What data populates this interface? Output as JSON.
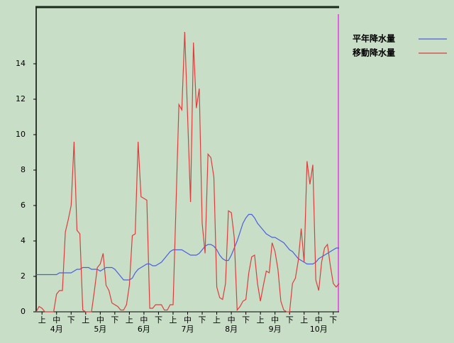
{
  "chart_data": {
    "type": "line",
    "categories": [
      null,
      null,
      "上",
      null,
      null,
      null,
      null,
      "中",
      null,
      null,
      null,
      null,
      "下",
      null,
      null,
      null,
      null,
      "上",
      null,
      null,
      null,
      null,
      "中",
      null,
      null,
      null,
      null,
      "下",
      null,
      null,
      null,
      null,
      "上",
      null,
      null,
      null,
      null,
      "中",
      null,
      null,
      null,
      null,
      "下",
      null,
      null,
      null,
      null,
      "上",
      null,
      null,
      null,
      null,
      "中",
      null,
      null,
      null,
      null,
      "下",
      null,
      null,
      null,
      null,
      "上",
      null,
      null,
      null,
      null,
      "中",
      null,
      null,
      null,
      null,
      "下",
      null,
      null,
      null,
      null,
      "上",
      null,
      null,
      null,
      null,
      "中",
      null,
      null,
      null,
      null,
      "下",
      null,
      null,
      null,
      null,
      "上",
      null,
      null,
      null,
      null,
      "中",
      null,
      null,
      null,
      null,
      "下",
      null,
      null
    ],
    "month_labels": [
      "4月",
      "5月",
      "6月",
      "7月",
      "8月",
      "9月",
      "10月"
    ],
    "series": [
      {
        "name": "平年降水量",
        "color": "#4a5ee0",
        "values": [
          2.1,
          2.1,
          2.1,
          2.1,
          2.1,
          2.1,
          2.1,
          2.1,
          2.2,
          2.2,
          2.2,
          2.2,
          2.2,
          2.3,
          2.4,
          2.4,
          2.5,
          2.5,
          2.5,
          2.4,
          2.4,
          2.4,
          2.3,
          2.4,
          2.5,
          2.5,
          2.5,
          2.4,
          2.2,
          2.0,
          1.8,
          1.8,
          1.8,
          1.9,
          2.2,
          2.4,
          2.5,
          2.6,
          2.7,
          2.7,
          2.6,
          2.6,
          2.7,
          2.8,
          3.0,
          3.2,
          3.4,
          3.5,
          3.5,
          3.5,
          3.5,
          3.4,
          3.3,
          3.2,
          3.2,
          3.2,
          3.3,
          3.5,
          3.7,
          3.8,
          3.8,
          3.7,
          3.5,
          3.2,
          3.0,
          2.9,
          2.9,
          3.2,
          3.6,
          4.0,
          4.5,
          5.0,
          5.3,
          5.5,
          5.5,
          5.3,
          5.0,
          4.8,
          4.6,
          4.4,
          4.3,
          4.2,
          4.2,
          4.1,
          4.0,
          3.9,
          3.7,
          3.5,
          3.4,
          3.2,
          3.0,
          2.9,
          2.8,
          2.7,
          2.7,
          2.7,
          2.8,
          3.0,
          3.1,
          3.2,
          3.3,
          3.4,
          3.5,
          3.6,
          3.6
        ]
      },
      {
        "name": "移動降水量",
        "color": "#e03c3c",
        "values": [
          0,
          0.3,
          0.2,
          0,
          0,
          0,
          0,
          1.0,
          1.2,
          1.2,
          4.5,
          5.2,
          6.0,
          9.6,
          4.6,
          4.4,
          0.1,
          0,
          0,
          0,
          1.2,
          2.5,
          2.7,
          3.3,
          1.5,
          1.2,
          0.5,
          0.4,
          0.3,
          0.1,
          0.1,
          0.4,
          1.5,
          4.3,
          4.4,
          9.6,
          6.5,
          6.4,
          6.3,
          0.2,
          0.2,
          0.4,
          0.4,
          0.4,
          0.1,
          0.1,
          0.4,
          0.4,
          6.0,
          11.7,
          11.4,
          15.8,
          11.0,
          6.2,
          15.2,
          11.5,
          12.6,
          5.0,
          3.3,
          8.9,
          8.7,
          7.6,
          1.4,
          0.8,
          0.7,
          1.6,
          5.7,
          5.6,
          4.2,
          0.1,
          0.3,
          0.6,
          0.7,
          2.2,
          3.1,
          3.2,
          1.6,
          0.6,
          1.5,
          2.3,
          2.2,
          3.9,
          3.4,
          2.4,
          0.6,
          0.1,
          0,
          0,
          1.6,
          1.9,
          2.9,
          4.7,
          2.8,
          8.5,
          7.2,
          8.3,
          1.8,
          1.2,
          2.8,
          3.6,
          3.8,
          2.6,
          1.6,
          1.4,
          1.6
        ]
      }
    ],
    "ylim": [
      0,
      17.2
    ],
    "yticks": [
      0,
      2,
      4,
      6,
      8,
      10,
      12,
      14
    ],
    "grid": false
  }
}
